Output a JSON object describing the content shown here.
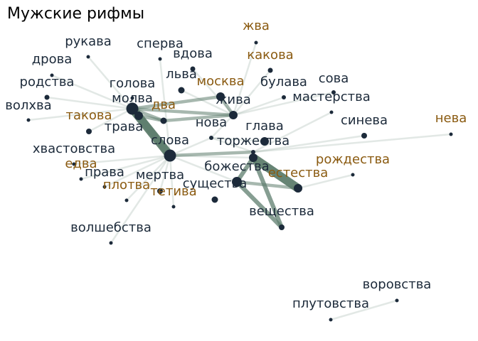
{
  "title": "Мужские рифмы",
  "colors": {
    "node": "#1c2a3a",
    "label_default": "#1c2a3a",
    "label_accent": "#8a5a10",
    "edge": "#5e7d6d"
  },
  "nodes": [
    {
      "id": "жива_top",
      "label": "жва",
      "group": "accent"
    },
    {
      "id": "рукава",
      "label": "рукава",
      "group": "default"
    },
    {
      "id": "сперва",
      "label": "сперва",
      "group": "default"
    },
    {
      "id": "вдова",
      "label": "вдова",
      "group": "default"
    },
    {
      "id": "какова",
      "label": "какова",
      "group": "accent"
    },
    {
      "id": "дрова",
      "label": "дрова",
      "group": "default"
    },
    {
      "id": "льва",
      "label": "льва",
      "group": "default"
    },
    {
      "id": "сова",
      "label": "сова",
      "group": "default"
    },
    {
      "id": "родства",
      "label": "родства",
      "group": "default"
    },
    {
      "id": "голова",
      "label": "голова",
      "group": "default"
    },
    {
      "id": "москва",
      "label": "москва",
      "group": "accent"
    },
    {
      "id": "булава",
      "label": "булава",
      "group": "default"
    },
    {
      "id": "волхва",
      "label": "волхва",
      "group": "default"
    },
    {
      "id": "молва",
      "label": "молва",
      "group": "default"
    },
    {
      "id": "два",
      "label": "два",
      "group": "accent"
    },
    {
      "id": "жива",
      "label": "жива",
      "group": "default"
    },
    {
      "id": "мастерства",
      "label": "мастерства",
      "group": "default"
    },
    {
      "id": "такова",
      "label": "такова",
      "group": "accent"
    },
    {
      "id": "нева",
      "label": "нева",
      "group": "accent"
    },
    {
      "id": "синева",
      "label": "синева",
      "group": "default"
    },
    {
      "id": "трава",
      "label": "трава",
      "group": "default"
    },
    {
      "id": "нова",
      "label": "нова",
      "group": "default"
    },
    {
      "id": "глава",
      "label": "глава",
      "group": "default"
    },
    {
      "id": "слова",
      "label": "слова",
      "group": "default"
    },
    {
      "id": "торжества",
      "label": "торжества",
      "group": "default"
    },
    {
      "id": "хвастовства",
      "label": "хвастовства",
      "group": "default"
    },
    {
      "id": "рождества",
      "label": "рождества",
      "group": "accent"
    },
    {
      "id": "едва",
      "label": "едва",
      "group": "accent"
    },
    {
      "id": "божества",
      "label": "божества",
      "group": "default"
    },
    {
      "id": "права",
      "label": "права",
      "group": "default"
    },
    {
      "id": "естества",
      "label": "естества",
      "group": "accent"
    },
    {
      "id": "мертва",
      "label": "мертва",
      "group": "default"
    },
    {
      "id": "плотва",
      "label": "плотва",
      "group": "accent"
    },
    {
      "id": "существа",
      "label": "существа",
      "group": "default"
    },
    {
      "id": "тетива",
      "label": "тетива",
      "group": "accent"
    },
    {
      "id": "вещества",
      "label": "вещества",
      "group": "default"
    },
    {
      "id": "волшебства",
      "label": "волшебства",
      "group": "default"
    },
    {
      "id": "воровства",
      "label": "воровства",
      "group": "default"
    },
    {
      "id": "плутовства",
      "label": "плутовства",
      "group": "default"
    }
  ],
  "edges": [
    {
      "source": "молва",
      "target": "слова",
      "weight": 5
    },
    {
      "source": "трава",
      "target": "слова",
      "weight": 4
    },
    {
      "source": "божества",
      "target": "естества",
      "weight": 5
    },
    {
      "source": "божества",
      "target": "вещества",
      "weight": 3
    },
    {
      "source": "существа",
      "target": "вещества",
      "weight": 3
    },
    {
      "source": "существа",
      "target": "божества",
      "weight": 3
    },
    {
      "source": "существа",
      "target": "естества",
      "weight": 2
    },
    {
      "source": "молва",
      "target": "москва",
      "weight": 2
    },
    {
      "source": "молва",
      "target": "жива",
      "weight": 2
    },
    {
      "source": "москва",
      "target": "жива",
      "weight": 2
    },
    {
      "source": "два",
      "target": "жива",
      "weight": 2
    },
    {
      "source": "молва",
      "target": "два",
      "weight": 2
    },
    {
      "source": "два",
      "target": "трава",
      "weight": 2
    },
    {
      "source": "слова",
      "target": "торжества",
      "weight": 2
    },
    {
      "source": "слова",
      "target": "нова",
      "weight": 1
    },
    {
      "source": "слова",
      "target": "существа",
      "weight": 1
    },
    {
      "source": "слова",
      "target": "божества",
      "weight": 1
    },
    {
      "source": "нова",
      "target": "торжества",
      "weight": 1
    },
    {
      "source": "нова",
      "target": "глава",
      "weight": 1
    },
    {
      "source": "торжества",
      "target": "божества",
      "weight": 1
    },
    {
      "source": "жива",
      "target": "нова",
      "weight": 1
    },
    {
      "source": "такова",
      "target": "молва",
      "weight": 1
    },
    {
      "source": "голова",
      "target": "молва",
      "weight": 1
    },
    {
      "source": "родства",
      "target": "молва",
      "weight": 1
    },
    {
      "source": "волхва",
      "target": "молва",
      "weight": 1
    },
    {
      "source": "рукава",
      "target": "молва",
      "weight": 1
    },
    {
      "source": "дрова",
      "target": "молва",
      "weight": 1
    },
    {
      "source": "льва",
      "target": "жива",
      "weight": 1
    },
    {
      "source": "сперва",
      "target": "слова",
      "weight": 1
    },
    {
      "source": "мастерства",
      "target": "торжества",
      "weight": 1
    },
    {
      "source": "булава",
      "target": "жива",
      "weight": 1
    },
    {
      "source": "сова",
      "target": "жива",
      "weight": 1
    },
    {
      "source": "синева",
      "target": "торжества",
      "weight": 1
    },
    {
      "source": "нева",
      "target": "торжества",
      "weight": 1
    },
    {
      "source": "хвастовства",
      "target": "слова",
      "weight": 1
    },
    {
      "source": "едва",
      "target": "слова",
      "weight": 1
    },
    {
      "source": "права",
      "target": "слова",
      "weight": 1
    },
    {
      "source": "мертва",
      "target": "слова",
      "weight": 1
    },
    {
      "source": "плотва",
      "target": "слова",
      "weight": 1
    },
    {
      "source": "тетива",
      "target": "слова",
      "weight": 1
    },
    {
      "source": "волшебства",
      "target": "слова",
      "weight": 1
    },
    {
      "source": "рождества",
      "target": "естества",
      "weight": 1
    },
    {
      "source": "воровства",
      "target": "плутовства",
      "weight": 1
    },
    {
      "source": "вдова",
      "target": "жива",
      "weight": 1
    },
    {
      "source": "какова",
      "target": "жива",
      "weight": 1
    },
    {
      "source": "жива_top",
      "target": "жива",
      "weight": 1
    }
  ]
}
